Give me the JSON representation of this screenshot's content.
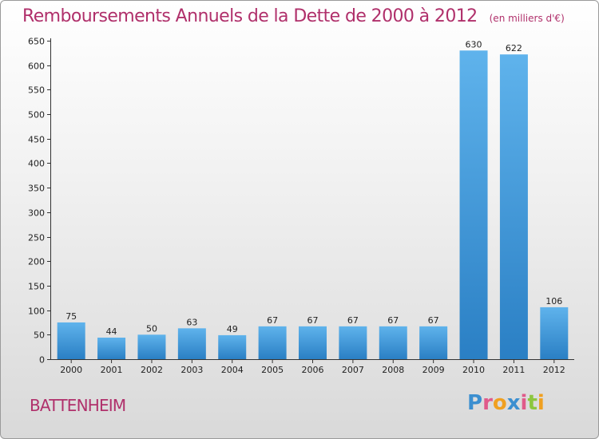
{
  "chart_data": {
    "type": "bar",
    "title": "Remboursements Annuels de la Dette de 2000 à 2012",
    "subtitle": "(en milliers d'€)",
    "categories": [
      "2000",
      "2001",
      "2002",
      "2003",
      "2004",
      "2005",
      "2006",
      "2007",
      "2008",
      "2009",
      "2010",
      "2011",
      "2012"
    ],
    "values": [
      75,
      44,
      50,
      63,
      49,
      67,
      67,
      67,
      67,
      67,
      630,
      622,
      106
    ],
    "ylim": [
      0,
      650
    ],
    "yticks": [
      0,
      50,
      100,
      150,
      200,
      250,
      300,
      350,
      400,
      450,
      500,
      550,
      600,
      650
    ],
    "grid": false,
    "bar_color": "#4aa3e0",
    "data_labels": true
  },
  "footer": {
    "town": "BATTENHEIM",
    "brand_letters": [
      {
        "ch": "P",
        "color": "#3b8fd0"
      },
      {
        "ch": "r",
        "color": "#e05a8a"
      },
      {
        "ch": "o",
        "color": "#f0a020"
      },
      {
        "ch": "x",
        "color": "#3b8fd0"
      },
      {
        "ch": "i",
        "color": "#e05a8a"
      },
      {
        "ch": "t",
        "color": "#8cc63f"
      },
      {
        "ch": "i",
        "color": "#f0a020"
      }
    ]
  },
  "colors": {
    "title": "#b0306b",
    "bar_light": "#5fb3ec",
    "bar_dark": "#2a7fc4"
  }
}
